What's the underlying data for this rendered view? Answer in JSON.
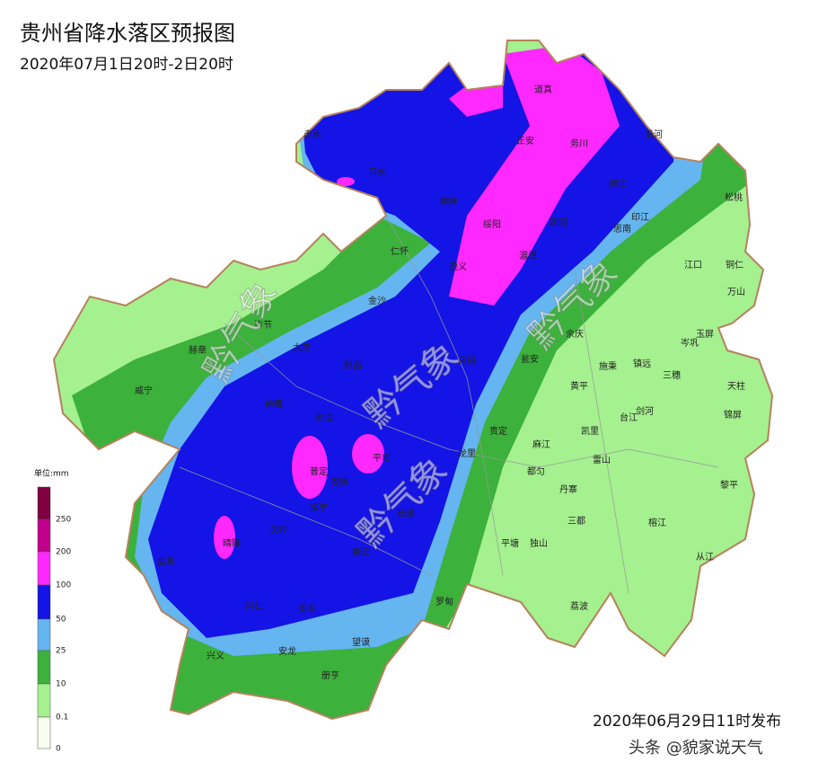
{
  "header": {
    "title": "贵州省降水落区预报图",
    "subtitle": "2020年07月1日20时-2日20时"
  },
  "legend": {
    "unit": "单位:mm",
    "labels": [
      "250",
      "200",
      "100",
      "50",
      "25",
      "10",
      "0.1",
      "0"
    ]
  },
  "cities": [
    "习水",
    "赤水",
    "桐梓",
    "正安",
    "道真",
    "务川",
    "沿河",
    "德江",
    "印江",
    "松桃",
    "绥阳",
    "凤冈",
    "思南",
    "仁怀",
    "遵义",
    "湄潭",
    "江口",
    "铜仁",
    "金沙",
    "万山",
    "毕节",
    "大方",
    "余庆",
    "玉屏",
    "赫章",
    "岑巩",
    "黔西",
    "瓮安",
    "施秉",
    "镇远",
    "三穗",
    "威宁",
    "开阳",
    "黄平",
    "天柱",
    "纳雍",
    "织金",
    "台江",
    "剑河",
    "锦屏",
    "凯里",
    "贵定",
    "麻江",
    "龙里",
    "雷山",
    "都匀",
    "安顺",
    "普定",
    "平坝",
    "黎平",
    "丹寨",
    "长顺",
    "镇宁",
    "三都",
    "榕江",
    "关岭",
    "盘县",
    "晴隆",
    "平塘",
    "独山",
    "紫云",
    "兴仁",
    "贞丰",
    "罗甸",
    "荔波",
    "安龙",
    "兴义",
    "望谟",
    "册亨",
    "从江"
  ],
  "watermarks": [
    "黔气象",
    "黔气象",
    "黔气象",
    "黔气象",
    "黔气象"
  ],
  "footer": {
    "issued": "2020年06月29日11时发布",
    "credit": "头条 @貌家说天气"
  }
}
